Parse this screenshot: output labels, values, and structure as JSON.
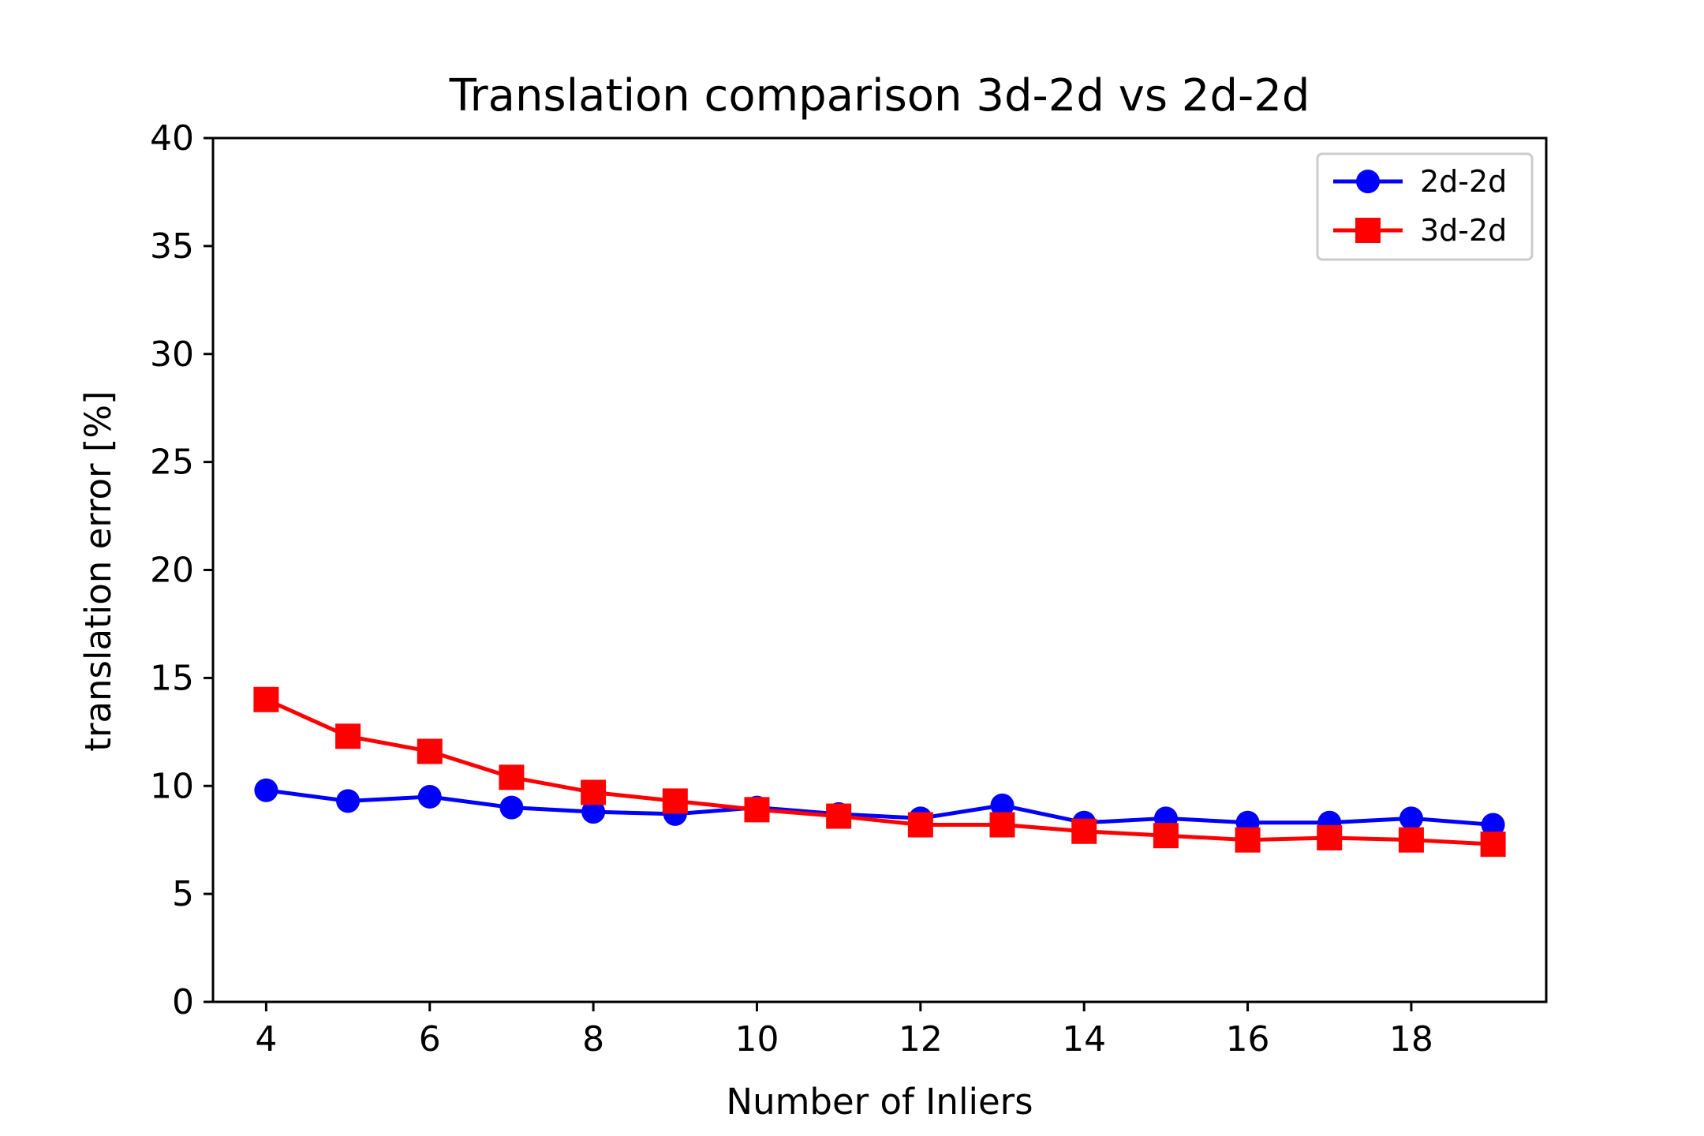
{
  "chart_data": {
    "type": "line",
    "title": "Translation comparison 3d-2d vs 2d-2d",
    "xlabel": "Number of Inliers",
    "ylabel": "translation error [%]",
    "x": [
      4,
      5,
      6,
      7,
      8,
      9,
      10,
      11,
      12,
      13,
      14,
      15,
      16,
      17,
      18,
      19
    ],
    "xlim": [
      3.35,
      19.65
    ],
    "ylim": [
      0,
      40
    ],
    "xticks": [
      4,
      6,
      8,
      10,
      12,
      14,
      16,
      18
    ],
    "yticks": [
      0,
      5,
      10,
      15,
      20,
      25,
      30,
      35,
      40
    ],
    "grid": false,
    "legend_position": "top-right",
    "series": [
      {
        "name": "2d-2d",
        "color": "#0000ff",
        "marker": "circle",
        "values": [
          9.8,
          9.3,
          9.5,
          9.0,
          8.8,
          8.7,
          9.0,
          8.7,
          8.5,
          9.1,
          8.3,
          8.5,
          8.3,
          8.3,
          8.5,
          8.2
        ]
      },
      {
        "name": "3d-2d",
        "color": "#ff0000",
        "marker": "square",
        "values": [
          14.0,
          12.3,
          11.6,
          10.4,
          9.7,
          9.3,
          8.9,
          8.6,
          8.2,
          8.2,
          7.9,
          7.7,
          7.5,
          7.6,
          7.5,
          7.3
        ]
      }
    ]
  }
}
